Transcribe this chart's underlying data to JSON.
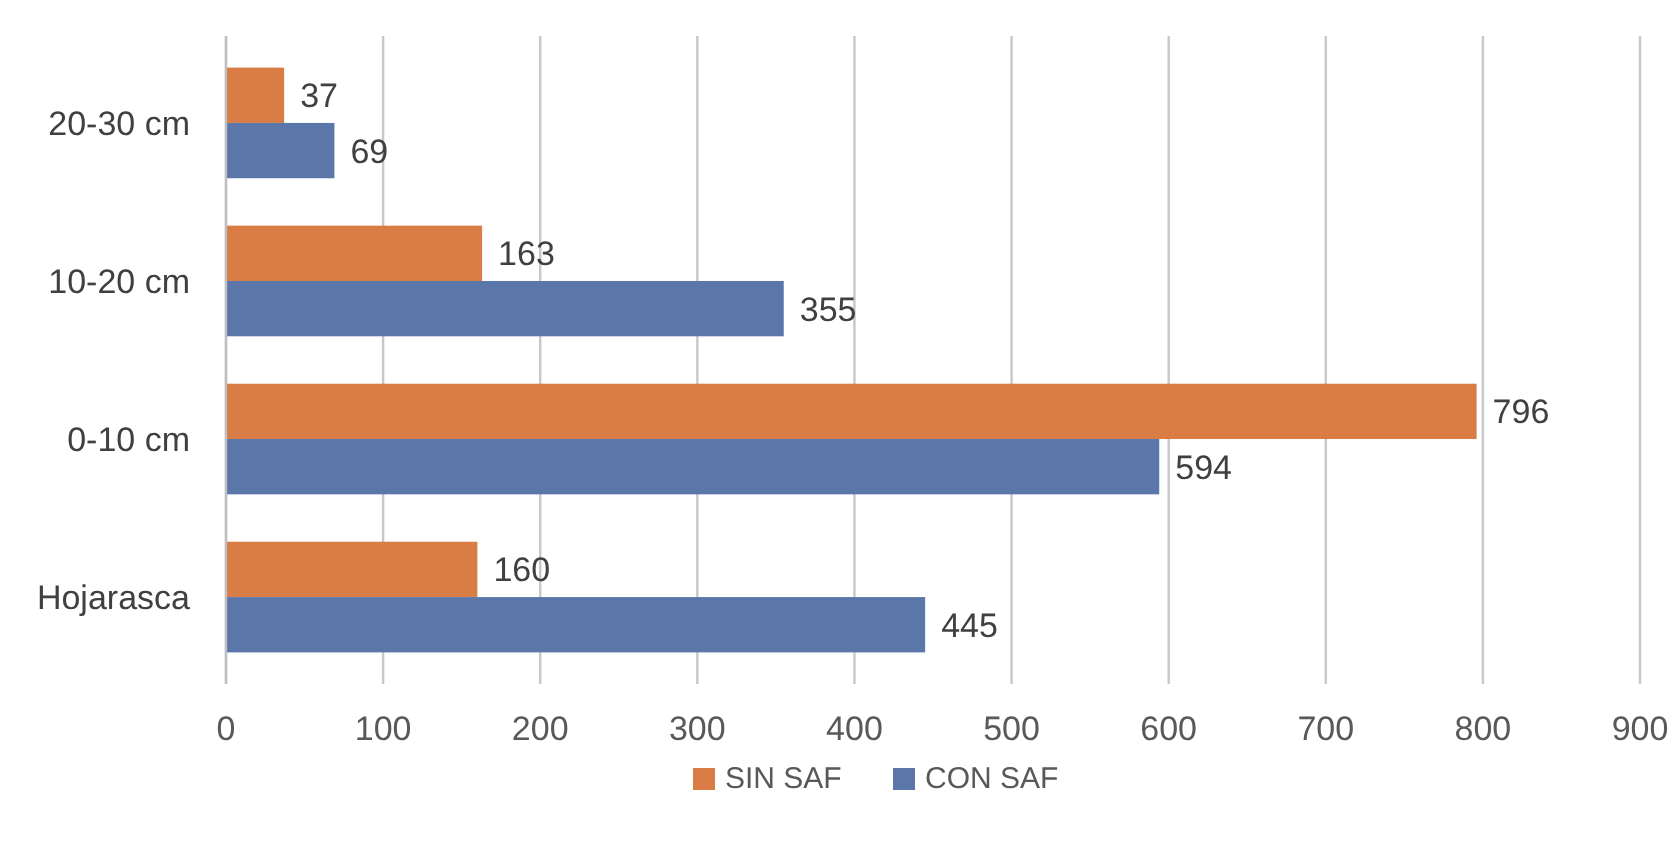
{
  "chart_data": {
    "type": "bar",
    "orientation": "horizontal",
    "categories": [
      "20-30 cm",
      "10-20 cm",
      "0-10 cm",
      "Hojarasca"
    ],
    "series": [
      {
        "name": "SIN SAF",
        "color": "#d97c45",
        "values": [
          37,
          163,
          796,
          160
        ]
      },
      {
        "name": "CON SAF",
        "color": "#5b77aa",
        "values": [
          69,
          355,
          594,
          445
        ]
      }
    ],
    "xlim": [
      0,
      900
    ],
    "xticks": [
      0,
      100,
      200,
      300,
      400,
      500,
      600,
      700,
      800,
      900
    ],
    "grid": "x",
    "legend": "bottom",
    "data_labels": true
  }
}
